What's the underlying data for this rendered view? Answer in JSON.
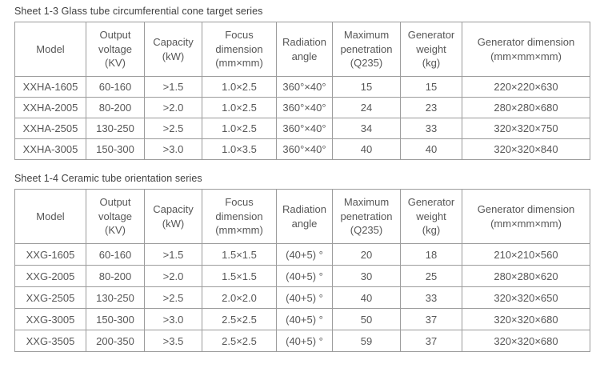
{
  "colors": {
    "text": "#575757",
    "border": "#9c9c9c",
    "title_text": "#404040",
    "background": "#ffffff"
  },
  "tables": [
    {
      "title": "Sheet 1-3 Glass tube circumferential cone target series",
      "headers": [
        "Model",
        "Output\nvoltage\n(KV)",
        "Capacity\n(kW)",
        "Focus\ndimension\n(mm×mm)",
        "Radiation\nangle",
        "Maximum\npenetration\n(Q235)",
        "Generator\nweight\n(kg)",
        "Generator dimension\n(mm×mm×mm)"
      ],
      "rows": [
        [
          "XXHA-1605",
          "60-160",
          ">1.5",
          "1.0×2.5",
          "360°×40°",
          "15",
          "15",
          "220×220×630"
        ],
        [
          "XXHA-2005",
          "80-200",
          ">2.0",
          "1.0×2.5",
          "360°×40°",
          "24",
          "23",
          "280×280×680"
        ],
        [
          "XXHA-2505",
          "130-250",
          ">2.5",
          "1.0×2.5",
          "360°×40°",
          "34",
          "33",
          "320×320×750"
        ],
        [
          "XXHA-3005",
          "150-300",
          ">3.0",
          "1.0×3.5",
          "360°×40°",
          "40",
          "40",
          "320×320×840"
        ]
      ]
    },
    {
      "title": "Sheet 1-4 Ceramic tube orientation series",
      "headers": [
        "Model",
        "Output\nvoltage\n(KV)",
        "Capacity\n(kW)",
        "Focus\ndimension\n(mm×mm)",
        "Radiation\nangle",
        "Maximum\npenetration\n(Q235)",
        "Generator\nweight\n(kg)",
        "Generator dimension\n(mm×mm×mm)"
      ],
      "rows": [
        [
          "XXG-1605",
          "60-160",
          ">1.5",
          "1.5×1.5",
          "(40+5) °",
          "20",
          "18",
          "210×210×560"
        ],
        [
          "XXG-2005",
          "80-200",
          ">2.0",
          "1.5×1.5",
          "(40+5) °",
          "30",
          "25",
          "280×280×620"
        ],
        [
          "XXG-2505",
          "130-250",
          ">2.5",
          "2.0×2.0",
          "(40+5) °",
          "40",
          "33",
          "320×320×650"
        ],
        [
          "XXG-3005",
          "150-300",
          ">3.0",
          "2.5×2.5",
          "(40+5) °",
          "50",
          "37",
          "320×320×680"
        ],
        [
          "XXG-3505",
          "200-350",
          ">3.5",
          "2.5×2.5",
          "(40+5) °",
          "59",
          "37",
          "320×320×680"
        ]
      ]
    }
  ]
}
